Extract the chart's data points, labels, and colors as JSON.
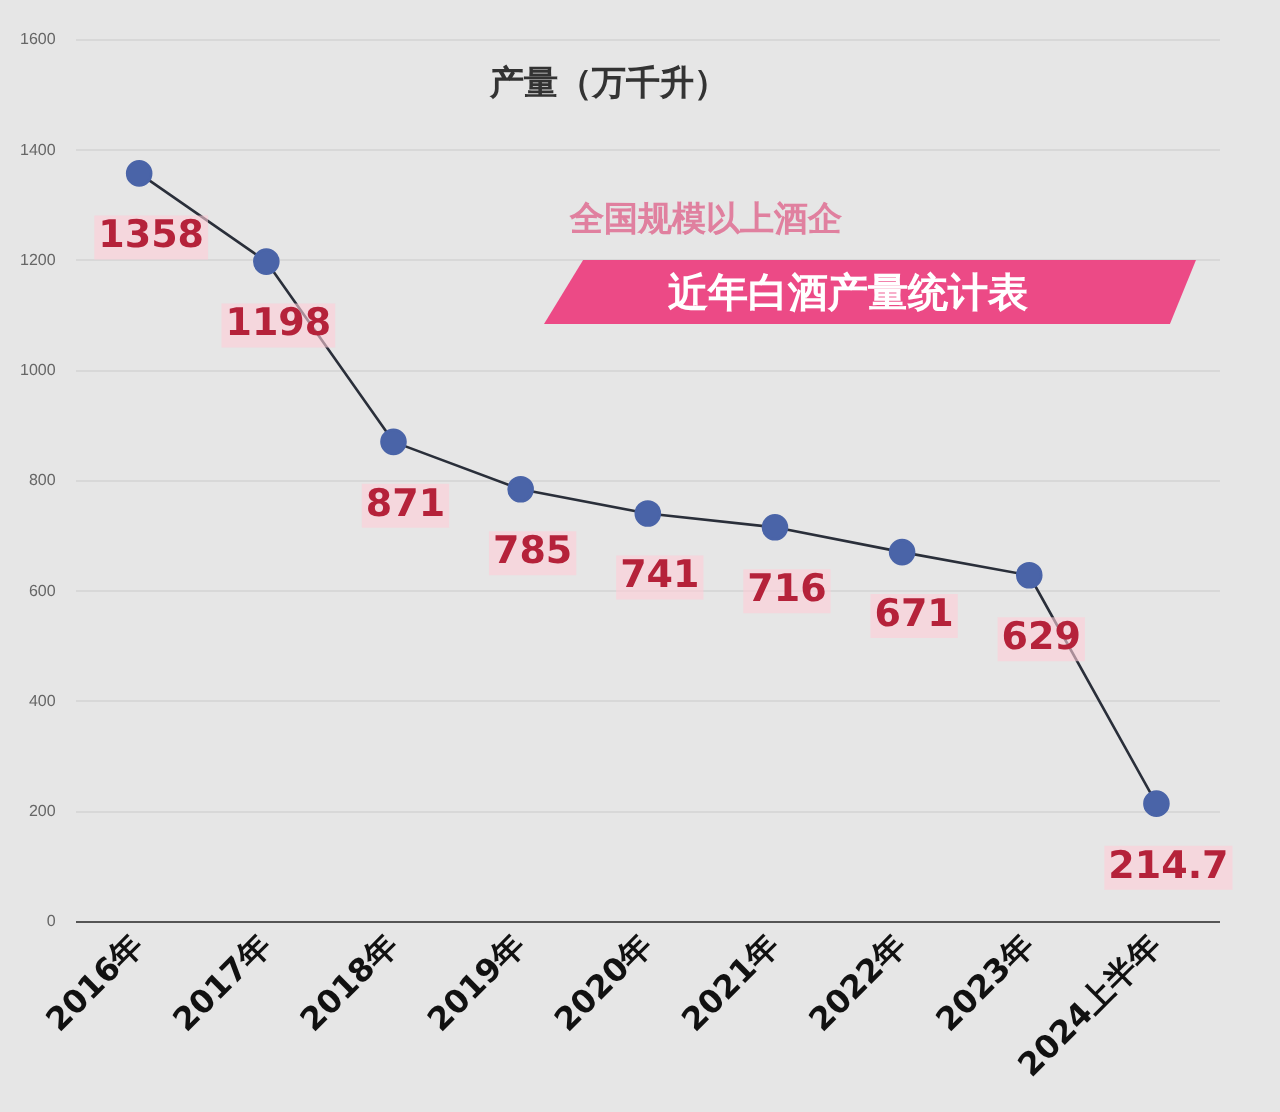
{
  "chart_data": {
    "type": "line",
    "title": "近年白酒产量统计表",
    "subtitle": "全国规模以上酒企",
    "ylabel": "产量（万千升）",
    "categories": [
      "2016年",
      "2017年",
      "2018年",
      "2019年",
      "2020年",
      "2021年",
      "2022年",
      "2023年",
      "2024上半年"
    ],
    "series": [
      {
        "color": "#4a64a8",
        "values": [
          1358,
          1198,
          871,
          785,
          741,
          716,
          671,
          629,
          214.7
        ]
      }
    ],
    "ylim": [
      0,
      1600
    ],
    "yticks": [
      0,
      200,
      400,
      600,
      800,
      1000,
      1200,
      1400,
      1600
    ],
    "grid": "y",
    "marker": "circle",
    "line_style": "solid",
    "data_labels": true,
    "legend": false
  }
}
